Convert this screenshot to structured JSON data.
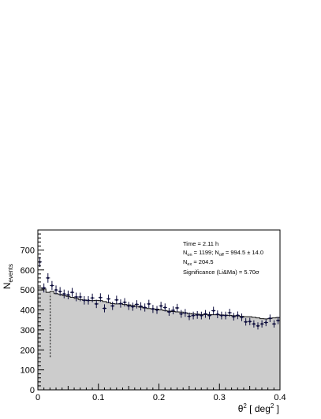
{
  "chart_data": {
    "type": "histogram",
    "xlabel": "θ² [ deg² ]",
    "ylabel": "N_events",
    "xlim": [
      0,
      0.4
    ],
    "ylim": [
      0,
      800
    ],
    "x_ticks": [
      0,
      0.1,
      0.2,
      0.3,
      0.4
    ],
    "x_tick_labels": [
      "0",
      "0.1",
      "0.2",
      "0.3",
      "0.4"
    ],
    "y_ticks": [
      0,
      100,
      200,
      300,
      400,
      500,
      600,
      700
    ],
    "y_tick_labels": [
      "0",
      "100",
      "200",
      "300",
      "400",
      "500",
      "600",
      "700"
    ],
    "grid": false,
    "colors": {
      "background_fill": "#cccccc",
      "on_points": "#0b0b3b",
      "background_line": "#111111"
    },
    "cut_line_x": 0.0205,
    "bin_width": 0.00667,
    "background_counts": [
      510,
      505,
      488,
      492,
      482,
      478,
      472,
      468,
      463,
      458,
      452,
      450,
      447,
      447,
      448,
      447,
      442,
      437,
      432,
      430,
      430,
      427,
      425,
      422,
      418,
      414,
      410,
      407,
      405,
      404,
      400,
      397,
      394,
      392,
      390,
      389,
      385,
      382,
      380,
      379,
      377,
      377,
      377,
      376,
      376,
      375,
      374,
      373,
      371,
      370,
      368,
      366,
      366,
      363,
      360,
      356,
      355,
      357,
      360,
      362
    ],
    "on_counts": [
      640,
      510,
      560,
      522,
      500,
      492,
      480,
      475,
      488,
      465,
      465,
      448,
      448,
      460,
      430,
      462,
      408,
      455,
      420,
      450,
      432,
      438,
      420,
      416,
      428,
      418,
      412,
      430,
      405,
      400,
      420,
      412,
      390,
      398,
      410,
      380,
      385,
      368,
      372,
      375,
      372,
      380,
      372,
      396,
      378,
      372,
      372,
      386,
      366,
      373,
      363,
      340,
      342,
      330,
      320,
      330,
      337,
      358,
      330,
      347
    ],
    "info_box": {
      "line1": "Time = 2.11 h",
      "line2_a": "N",
      "line2_a_sub": "on",
      "line2_b": " = 1199; N",
      "line2_b_sub": "off",
      "line2_c": " = 994.5 ± 14.0",
      "line3_a": "N",
      "line3_a_sub": "ex",
      "line3_b": " = 204.5",
      "line4": "Significance (Li&Ma) = 5.70σ"
    }
  }
}
